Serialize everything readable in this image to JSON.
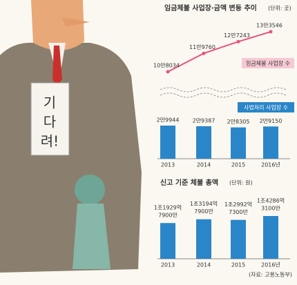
{
  "illustration": {
    "sign_text": [
      "기",
      "다",
      "려!"
    ]
  },
  "chart_data": [
    {
      "type": "line",
      "title": "임금체불 사업장·금액 변동 추이",
      "unit": "(단위: 곳)",
      "categories": [
        null,
        null,
        null,
        null
      ],
      "series": [
        {
          "name": "임금체불 사업장 수",
          "color": "#e8547a",
          "values": [
            108034,
            119760,
            127243,
            133546
          ],
          "value_labels": [
            "10만8034",
            "11만9760",
            "12만7243",
            "13만3546"
          ]
        }
      ]
    },
    {
      "type": "bar",
      "title": "사법처리 사업장 수",
      "color": "#2a86c9",
      "categories": [
        "2013",
        "2014",
        "2015",
        "2016년"
      ],
      "values": [
        29944,
        29387,
        28305,
        29150
      ],
      "value_labels": [
        "2만9944",
        "2만9387",
        "2만8305",
        "2만9150"
      ]
    },
    {
      "type": "bar",
      "title": "신고 기준 체불 총액",
      "unit": "(단위: 원)",
      "color": "#2a86c9",
      "categories": [
        "2013",
        "2014",
        "2015",
        "2016년"
      ],
      "values": [
        1192979000000,
        1319479000000,
        1299273000000,
        1428631000000
      ],
      "value_labels": [
        [
          "1조1929억",
          "7900만"
        ],
        [
          "1조3194억",
          "7900만"
        ],
        [
          "1조2992억",
          "7300만"
        ],
        [
          "1조4286억",
          "3100만"
        ]
      ],
      "source": "(자료: 고용노동부)"
    }
  ]
}
